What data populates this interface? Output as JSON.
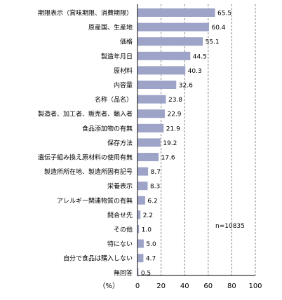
{
  "chart_data": {
    "type": "bar",
    "orientation": "horizontal",
    "categories": [
      "期限表示（賞味期限、消費期限）",
      "原産国、生産地",
      "価格",
      "製造年月日",
      "原材料",
      "内容量",
      "名称（品名）",
      "製造者、加工者、販売者、輸入者",
      "食品添加物の有無",
      "保存方法",
      "遺伝子組み換え原材料の使用有無",
      "製造所所在地、製造所固有記号",
      "栄養表示",
      "アレルギー関連物質の有無",
      "問合せ先",
      "その他",
      "特にない",
      "自分で食品は購入しない",
      "無回答"
    ],
    "values": [
      65.5,
      60.4,
      55.1,
      44.5,
      40.3,
      32.6,
      23.8,
      22.9,
      21.9,
      19.2,
      17.6,
      8.7,
      8.3,
      6.2,
      2.2,
      1.0,
      5.0,
      4.7,
      0.5
    ],
    "value_labels": [
      "65.5",
      "60.4",
      "55.1",
      "44.5",
      "40.3",
      "32.6",
      "23.8",
      "22.9",
      "21.9",
      "19.2",
      "17.6",
      "8.7",
      "8.3",
      "6.2",
      "2.2",
      "1.0",
      "5.0",
      "4.7",
      "0.5"
    ],
    "xlim": [
      0,
      100
    ],
    "xticks": [
      0,
      20,
      40,
      60,
      80,
      100
    ],
    "xtick_labels": [
      "0",
      "20",
      "40",
      "60",
      "80",
      "100"
    ],
    "unit_label": "（%）",
    "note": "n=10835",
    "grid": true,
    "bar_color": "#9ea3c8"
  }
}
